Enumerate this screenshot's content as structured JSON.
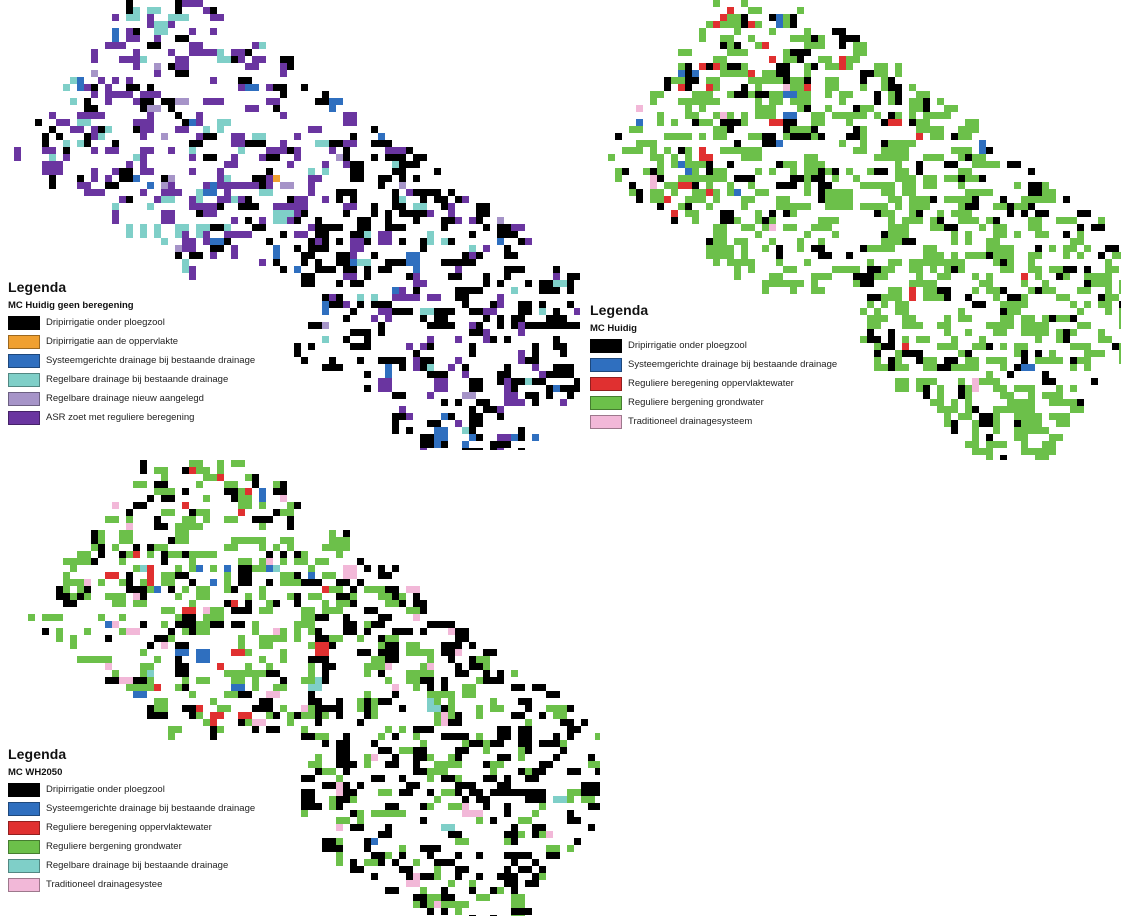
{
  "panels": [
    {
      "legend": {
        "title": "Legenda",
        "subtitle": "MC Huidig geen beregening",
        "items": [
          {
            "label": "Dripirrigatie onder ploegzool",
            "color": "#000000"
          },
          {
            "label": "Dripirrigatie aan de oppervlakte",
            "color": "#f0a030"
          },
          {
            "label": "Systeemgerichte drainage bij bestaande drainage",
            "color": "#2f6fbf"
          },
          {
            "label": "Regelbare drainage bij bestaande drainage",
            "color": "#7fcfc8"
          },
          {
            "label": "Regelbare drainage nieuw aangelegd",
            "color": "#a694c8"
          },
          {
            "label": "ASR zoet met reguliere beregening",
            "color": "#6a35a0"
          }
        ]
      }
    },
    {
      "legend": {
        "title": "Legenda",
        "subtitle": "MC Huidig",
        "items": [
          {
            "label": "Dripirrigatie onder ploegzool",
            "color": "#000000"
          },
          {
            "label": "Systeemgerichte drainage bij bestaande drainage",
            "color": "#2f6fbf"
          },
          {
            "label": "Reguliere beregening oppervlaktewater",
            "color": "#e03030"
          },
          {
            "label": "Reguliere bergening grondwater",
            "color": "#6cc04a"
          },
          {
            "label": "Traditioneel drainagesysteem",
            "color": "#f2b8d8"
          }
        ]
      }
    },
    {
      "legend": {
        "title": "Legenda",
        "subtitle": "MC WH2050",
        "items": [
          {
            "label": "Dripirrigatie onder ploegzool",
            "color": "#000000"
          },
          {
            "label": "Systeemgerichte drainage bij bestaande drainage",
            "color": "#2f6fbf"
          },
          {
            "label": "Reguliere beregening oppervlaktewater",
            "color": "#e03030"
          },
          {
            "label": "Reguliere bergening grondwater",
            "color": "#6cc04a"
          },
          {
            "label": "Regelbare drainage bij bestaande drainage",
            "color": "#7fcfc8"
          },
          {
            "label": "Traditioneel drainagesystee",
            "color": "#f2b8d8"
          }
        ]
      }
    }
  ]
}
